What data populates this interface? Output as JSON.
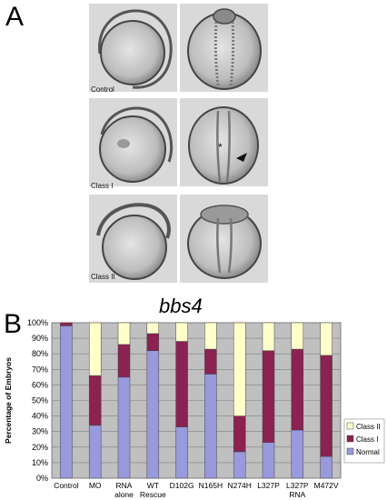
{
  "panels": {
    "a": "A",
    "b": "B"
  },
  "microscopy": {
    "rows": [
      {
        "label": "Control"
      },
      {
        "label": "Class I"
      },
      {
        "label": "Class II"
      }
    ],
    "annotations": {
      "asterisk": "*"
    }
  },
  "gene_title": "bbs4",
  "chart_data": {
    "type": "bar",
    "stacked": true,
    "percent": true,
    "title": "",
    "xlabel": "",
    "ylabel": "Percentage of Embryos",
    "ylim": [
      0,
      100
    ],
    "yticks": [
      "0%",
      "10%",
      "20%",
      "30%",
      "40%",
      "50%",
      "60%",
      "70%",
      "80%",
      "90%",
      "100%"
    ],
    "categories": [
      "Control",
      "MO",
      "RNA alone",
      "WT Rescue",
      "D102G",
      "N165H",
      "N274H",
      "L327P",
      "L327P RNA",
      "M472V"
    ],
    "category_lines": [
      [
        "Control"
      ],
      [
        "MO"
      ],
      [
        "RNA",
        "alone"
      ],
      [
        "WT",
        "Rescue"
      ],
      [
        "D102G"
      ],
      [
        "N165H"
      ],
      [
        "N274H"
      ],
      [
        "L327P"
      ],
      [
        "L327P",
        "RNA"
      ],
      [
        "M472V"
      ]
    ],
    "series": [
      {
        "name": "Normal",
        "color": "#9999dd",
        "values": [
          98,
          34,
          65,
          82,
          33,
          67,
          17,
          23,
          31,
          14
        ]
      },
      {
        "name": "Class I",
        "color": "#8b2252",
        "values": [
          2,
          32,
          21,
          11,
          55,
          16,
          23,
          59,
          52,
          65
        ]
      },
      {
        "name": "Class II",
        "color": "#ffffcc",
        "values": [
          0,
          34,
          14,
          7,
          12,
          17,
          60,
          18,
          17,
          21
        ]
      }
    ],
    "legend": {
      "position": "right",
      "order": [
        "Class II",
        "Class I",
        "Normal"
      ]
    },
    "plot_background": "#c0c0c0",
    "grid": true
  }
}
